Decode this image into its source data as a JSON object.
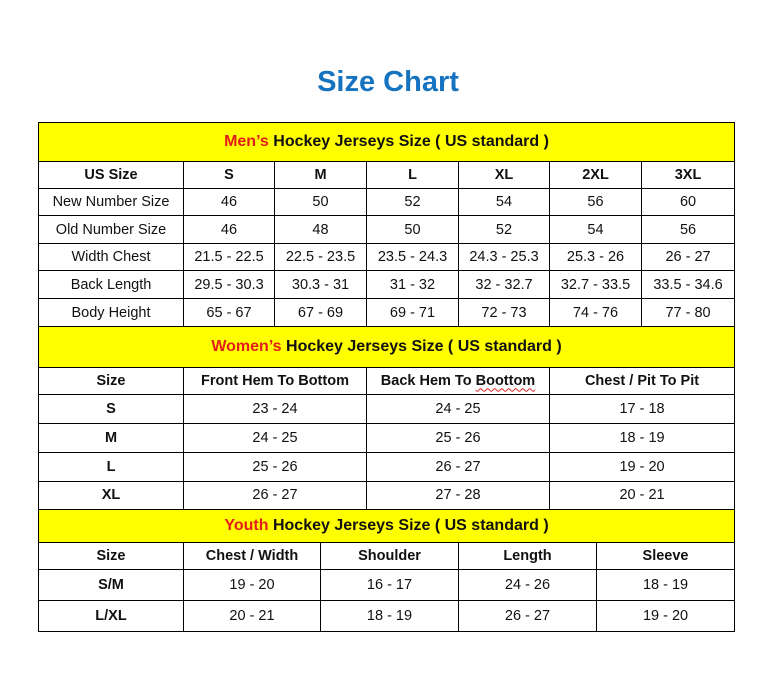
{
  "title": "Size Chart",
  "colors": {
    "title": "#1673c0",
    "section_bg": "#ffff00",
    "highlight": "#e31c1c"
  },
  "sections": [
    {
      "highlight": "Men’s",
      "rest": " Hockey Jerseys Size ( US standard )",
      "header": [
        "US Size",
        "S",
        "M",
        "L",
        "XL",
        "2XL",
        "3XL"
      ],
      "rows": [
        [
          "New Number Size",
          "46",
          "50",
          "52",
          "54",
          "56",
          "60"
        ],
        [
          "Old Number Size",
          "46",
          "48",
          "50",
          "52",
          "54",
          "56"
        ],
        [
          "Width Chest",
          "21.5 - 22.5",
          "22.5 - 23.5",
          "23.5 - 24.3",
          "24.3 - 25.3",
          "25.3 - 26",
          "26 - 27"
        ],
        [
          "Back Length",
          "29.5 - 30.3",
          "30.3 - 31",
          "31 - 32",
          "32 - 32.7",
          "32.7 - 33.5",
          "33.5 - 34.6"
        ],
        [
          "Body Height",
          "65 - 67",
          "67 - 69",
          "69 - 71",
          "72 - 73",
          "74 - 76",
          "77 - 80"
        ]
      ]
    },
    {
      "highlight": "Women’s",
      "rest": " Hockey Jerseys Size ( US standard )",
      "header": [
        "Size",
        "Front Hem To Bottom",
        "Back Hem To Boottom",
        "Chest / Pit To Pit"
      ],
      "rows": [
        [
          "S",
          "23 - 24",
          "24 - 25",
          "17 - 18"
        ],
        [
          "M",
          "24 - 25",
          "25 - 26",
          "18 - 19"
        ],
        [
          "L",
          "25 - 26",
          "26 - 27",
          "19 - 20"
        ],
        [
          "XL",
          "26 - 27",
          "27 - 28",
          "20 - 21"
        ]
      ]
    },
    {
      "highlight": "Youth",
      "rest": " Hockey Jerseys Size ( US standard )",
      "header": [
        "Size",
        "Chest / Width",
        "Shoulder",
        "Length",
        "Sleeve"
      ],
      "rows": [
        [
          "S/M",
          "19 - 20",
          "16 - 17",
          "24 - 26",
          "18 - 19"
        ],
        [
          "L/XL",
          "20 - 21",
          "18 - 19",
          "26 - 27",
          "19 - 20"
        ]
      ]
    }
  ]
}
